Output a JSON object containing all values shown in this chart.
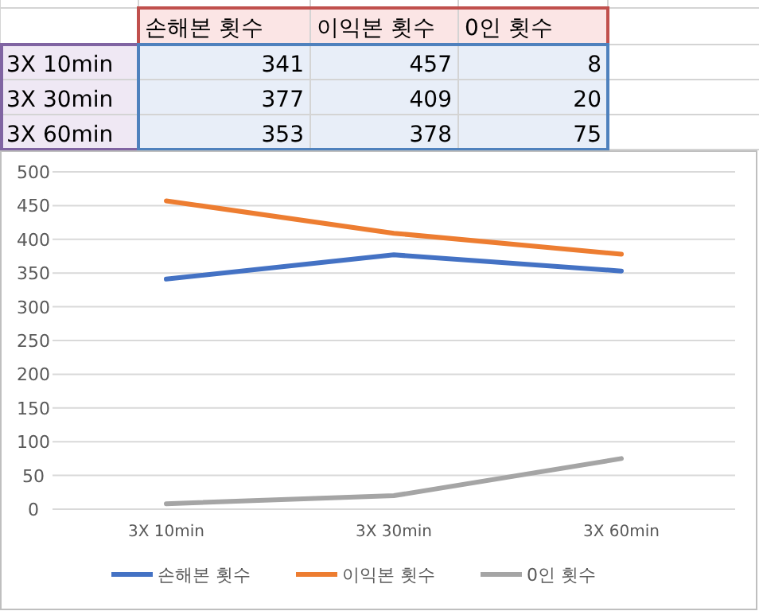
{
  "chart_data": [
    {
      "type": "other",
      "categories": [
        "3X 10min",
        "3X 30min",
        "3X 60min"
      ],
      "series": [
        {
          "name": "손해본 횟수",
          "values": [
            341,
            377,
            353
          ]
        },
        {
          "name": "이익본 횟수",
          "values": [
            457,
            409,
            378
          ]
        },
        {
          "name": "0인 횟수",
          "values": [
            8,
            20,
            75
          ]
        }
      ],
      "data_labels": true
    },
    {
      "type": "line",
      "categories": [
        "3X 10min",
        "3X 30min",
        "3X 60min"
      ],
      "series": [
        {
          "name": "손해본 횟수",
          "color": "#4472c4",
          "values": [
            341,
            377,
            353
          ]
        },
        {
          "name": "이익본 횟수",
          "color": "#ed7d31",
          "values": [
            457,
            409,
            378
          ]
        },
        {
          "name": "0인 횟수",
          "color": "#a5a5a5",
          "values": [
            8,
            20,
            75
          ]
        }
      ],
      "ylim": [
        0,
        500
      ],
      "yticks": [
        0,
        50,
        100,
        150,
        200,
        250,
        300,
        350,
        400,
        450,
        500
      ],
      "grid": "y",
      "legend": "bottom",
      "marker": "none",
      "line_style": "solid"
    }
  ]
}
